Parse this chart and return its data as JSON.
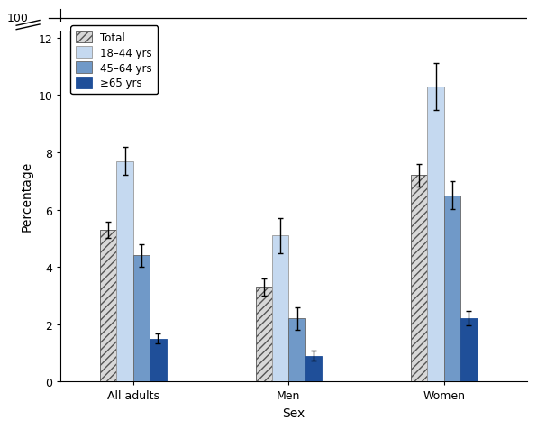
{
  "groups": [
    "All adults",
    "Men",
    "Women"
  ],
  "series": [
    {
      "label": "Total",
      "facecolor": "#d8d8d8",
      "hatch": "////",
      "edgecolor": "#555555",
      "values": [
        5.3,
        3.3,
        7.2
      ],
      "errors": [
        0.28,
        0.3,
        0.38
      ]
    },
    {
      "label": "18–44 yrs",
      "facecolor": "#c5d9f0",
      "hatch": "",
      "edgecolor": "#999999",
      "values": [
        7.7,
        5.1,
        10.3
      ],
      "errors": [
        0.5,
        0.62,
        0.82
      ]
    },
    {
      "label": "45–64 yrs",
      "facecolor": "#7099c8",
      "hatch": "",
      "edgecolor": "#666666",
      "values": [
        4.4,
        2.2,
        6.5
      ],
      "errors": [
        0.38,
        0.4,
        0.48
      ]
    },
    {
      "label": "≥65 yrs",
      "facecolor": "#1f4f99",
      "hatch": "",
      "edgecolor": "#1f4f99",
      "values": [
        1.5,
        0.9,
        2.2
      ],
      "errors": [
        0.18,
        0.18,
        0.25
      ]
    }
  ],
  "ylabel": "Percentage",
  "xlabel": "Sex",
  "bar_width": 0.16,
  "group_centers": [
    1.0,
    2.5,
    4.0
  ],
  "xlim": [
    0.3,
    4.8
  ],
  "ylim": [
    0,
    13.0
  ],
  "yticks": [
    0,
    2,
    4,
    6,
    8,
    10,
    12
  ],
  "ytick_labels": [
    "0",
    "2",
    "4",
    "6",
    "8",
    "10",
    "12"
  ],
  "y_top": 12.7,
  "y_break_lo": 12.25,
  "y_break_hi": 12.55,
  "legend_fontsize": 8.5,
  "axis_label_fontsize": 10,
  "tick_fontsize": 9
}
